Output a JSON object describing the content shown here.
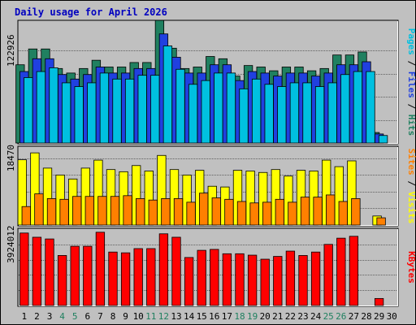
{
  "chart_data": {
    "type": "bar",
    "title": "Daily usage for April 2026",
    "categories": [
      "1",
      "2",
      "3",
      "4",
      "5",
      "6",
      "7",
      "8",
      "9",
      "10",
      "11",
      "12",
      "13",
      "14",
      "15",
      "16",
      "17",
      "18",
      "19",
      "20",
      "21",
      "22",
      "23",
      "24",
      "25",
      "26",
      "27",
      "28",
      "29",
      "30"
    ],
    "weekend_days": [
      "4",
      "5",
      "11",
      "12",
      "18",
      "19",
      "25",
      "26"
    ],
    "panels": [
      {
        "id": "hits-files-pages",
        "ytick": "122926",
        "ytick_value": 122926,
        "ymax": 162000,
        "legend": [
          {
            "label": "Pages",
            "color": "#00c0e0"
          },
          {
            "label": "Files",
            "color": "#2040e0"
          },
          {
            "label": "Hits",
            "color": "#208060"
          }
        ],
        "series": [
          {
            "name": "Hits",
            "color": "#208060",
            "values": [
              104000,
              125000,
              125000,
              99000,
              93000,
              99000,
              110000,
              101000,
              101000,
              107000,
              107000,
              163000,
              126000,
              99000,
              101000,
              115000,
              112000,
              89000,
              103000,
              101000,
              96000,
              101000,
              101000,
              96000,
              99000,
              117000,
              117000,
              121000,
              14000,
              0
            ]
          },
          {
            "name": "Files",
            "color": "#2040e0",
            "values": [
              95000,
              112000,
              112000,
              91000,
              85000,
              91000,
              101000,
              93000,
              93000,
              99000,
              99000,
              145000,
              114000,
              93000,
              93000,
              104000,
              104000,
              83000,
              95000,
              93000,
              89000,
              93000,
              93000,
              89000,
              93000,
              104000,
              104000,
              108000,
              12000,
              0
            ]
          },
          {
            "name": "Pages",
            "color": "#00c0e0",
            "values": [
              87000,
              95000,
              100000,
              80000,
              75000,
              80000,
              93000,
              85000,
              85000,
              90000,
              90000,
              129000,
              98000,
              78000,
              83000,
              93000,
              93000,
              72000,
              85000,
              78000,
              75000,
              80000,
              80000,
              75000,
              80000,
              91000,
              95000,
              95000,
              10000,
              0
            ]
          }
        ]
      },
      {
        "id": "visits-sites",
        "ytick": "18470",
        "ytick_value": 18470,
        "ymax": 21500,
        "legend": [
          {
            "label": "Sites",
            "color": "#ff8000"
          },
          {
            "label": "Visits",
            "color": "#ffff00"
          }
        ],
        "series": [
          {
            "name": "Visits",
            "color": "#ffff00",
            "values": [
              18000,
              19900,
              15700,
              13800,
              12700,
              15700,
              17900,
              15300,
              14700,
              16400,
              14900,
              19200,
              15300,
              13800,
              15100,
              10700,
              10500,
              15100,
              14900,
              14500,
              15300,
              13500,
              15100,
              14900,
              17900,
              16100,
              17700,
              0,
              2500,
              0
            ]
          },
          {
            "name": "Sites",
            "color": "#ff8000",
            "values": [
              5100,
              8600,
              7300,
              7100,
              7900,
              7900,
              7900,
              7900,
              8100,
              7300,
              6900,
              7300,
              7300,
              6300,
              8800,
              7500,
              7100,
              6500,
              6100,
              6300,
              7100,
              6300,
              7700,
              7700,
              8300,
              6500,
              7300,
              0,
              2000,
              0
            ]
          }
        ]
      },
      {
        "id": "kbytes",
        "ytick": "3924012",
        "ytick_value": 3924012,
        "ymax": 4900000,
        "legend": [
          {
            "label": "KBytes",
            "color": "#ff0000"
          }
        ],
        "series": [
          {
            "name": "KBytes",
            "color": "#ff0000",
            "values": [
              4650000,
              4380000,
              4270000,
              3210000,
              3800000,
              3800000,
              4700000,
              3430000,
              3380000,
              3650000,
              3650000,
              4600000,
              4380000,
              3080000,
              3540000,
              3600000,
              3320000,
              3320000,
              3230000,
              2970000,
              3150000,
              3490000,
              3210000,
              3430000,
              3920000,
              4320000,
              4440000,
              0,
              450000,
              0
            ]
          }
        ]
      }
    ]
  },
  "colors": {
    "page_background": "#ffffff",
    "frame": "#c0c0c0",
    "plot_background": "#c0c0c0",
    "title": "#0000c0",
    "weekday_label": "#000000",
    "weekend_label": "#208060",
    "separator": "#ffffff"
  }
}
